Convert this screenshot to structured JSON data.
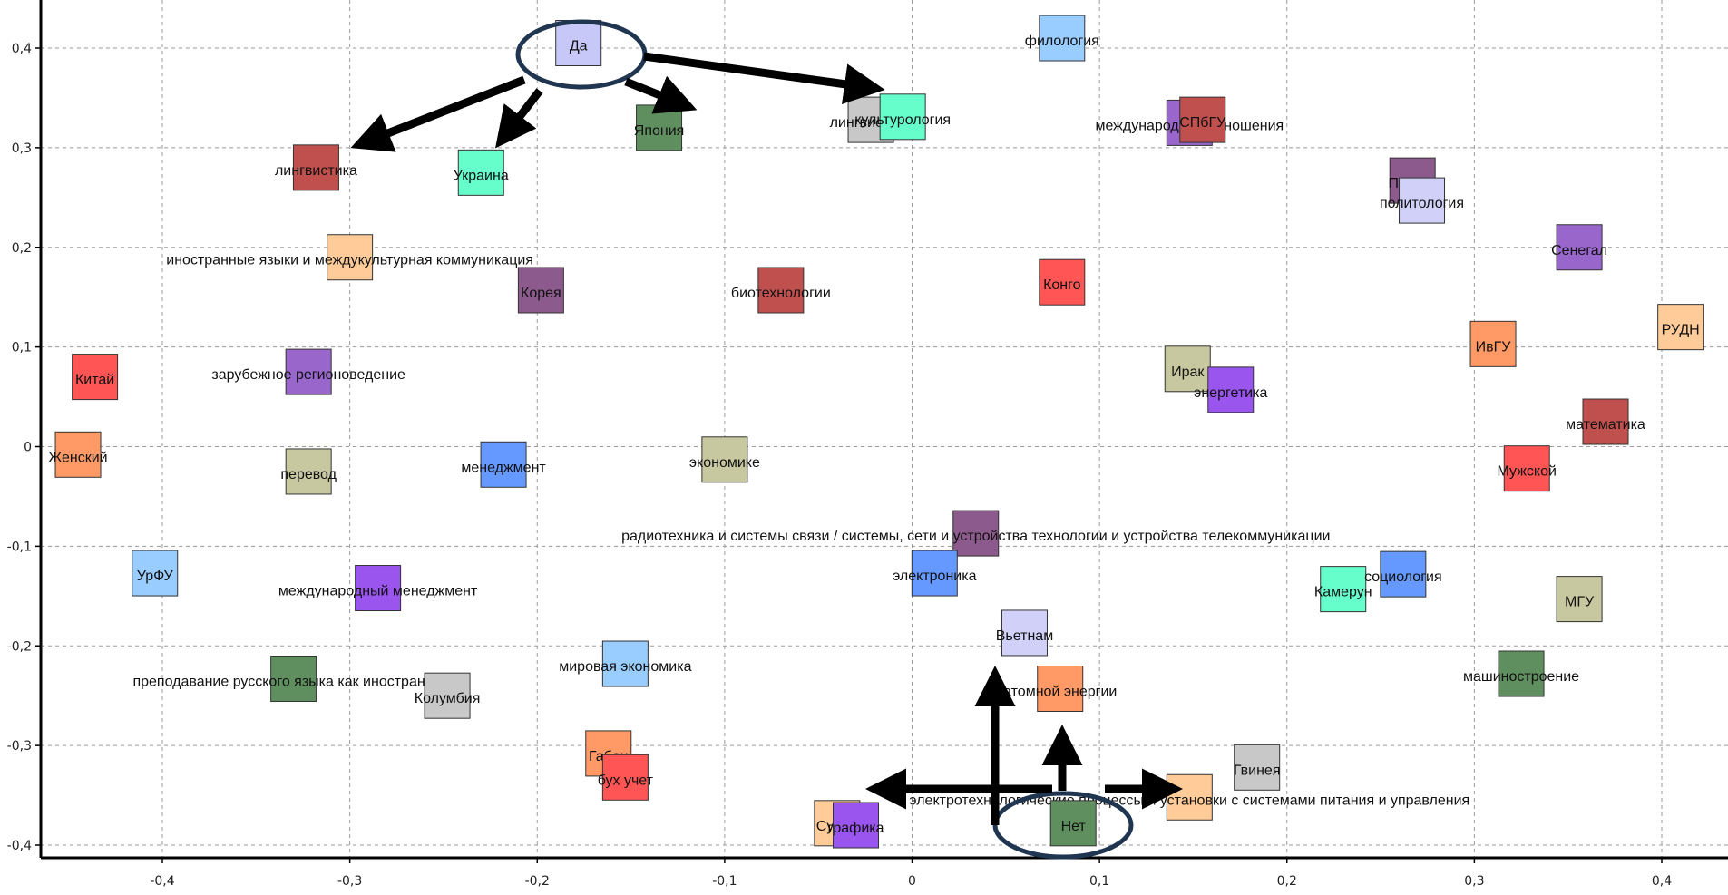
{
  "chart_data": {
    "type": "scatter",
    "xlim": [
      -0.46,
      0.43
    ],
    "ylim": [
      -0.415,
      0.435
    ],
    "grid": true,
    "x_ticks": [
      -0.4,
      -0.3,
      -0.2,
      -0.1,
      0,
      0.1,
      0.2,
      0.3,
      0.4
    ],
    "x_tick_labels": [
      "-0,4",
      "-0,3",
      "-0,2",
      "-0,1",
      "0",
      "0,1",
      "0,2",
      "0,3",
      "0,4"
    ],
    "y_ticks": [
      -0.4,
      -0.3,
      -0.2,
      -0.1,
      0,
      0.1,
      0.2,
      0.3,
      0.4
    ],
    "y_tick_labels": [
      "-0,4",
      "-0,3",
      "-0,2",
      "-0,1",
      "0",
      "0,1",
      "0,2",
      "0,3",
      "0,4"
    ],
    "points": [
      {
        "label": "Да",
        "x": -0.178,
        "y": 0.405,
        "color": "#c8c8f8"
      },
      {
        "label": "филология",
        "x": 0.08,
        "y": 0.41,
        "color": "#99ccff"
      },
      {
        "label": "лингвистика",
        "x": -0.318,
        "y": 0.28,
        "color": "#c0504d"
      },
      {
        "label": "Украина",
        "x": -0.23,
        "y": 0.275,
        "color": "#66ffcc"
      },
      {
        "label": "Япония",
        "x": -0.135,
        "y": 0.32,
        "color": "#5f8f5f"
      },
      {
        "label": "лингвистика",
        "x": -0.022,
        "y": 0.328,
        "color": "#c8c8c8"
      },
      {
        "label": "культурология",
        "x": -0.005,
        "y": 0.331,
        "color": "#66ffcc"
      },
      {
        "label": "международные отношения",
        "x": 0.148,
        "y": 0.325,
        "color": "#9966cc"
      },
      {
        "label": "СПбГУ",
        "x": 0.155,
        "y": 0.328,
        "color": "#c0504d"
      },
      {
        "label": "ПГНИУ",
        "x": 0.267,
        "y": 0.267,
        "color": "#8c5a8c"
      },
      {
        "label": "политология",
        "x": 0.272,
        "y": 0.247,
        "color": "#d0d0f8"
      },
      {
        "label": "иностранные языки и междукультурная коммуникация",
        "x": -0.3,
        "y": 0.19,
        "color": "#ffcc99"
      },
      {
        "label": "Корея",
        "x": -0.198,
        "y": 0.157,
        "color": "#8c5a8c"
      },
      {
        "label": "биотехнологии",
        "x": -0.07,
        "y": 0.157,
        "color": "#c0504d"
      },
      {
        "label": "Конго",
        "x": 0.08,
        "y": 0.165,
        "color": "#ff5555"
      },
      {
        "label": "Сенегал",
        "x": 0.356,
        "y": 0.2,
        "color": "#9966cc"
      },
      {
        "label": "РУДН",
        "x": 0.41,
        "y": 0.12,
        "color": "#ffcc99"
      },
      {
        "label": "ИвГУ",
        "x": 0.31,
        "y": 0.103,
        "color": "#ff9966"
      },
      {
        "label": "Китай",
        "x": -0.436,
        "y": 0.07,
        "color": "#ff5555"
      },
      {
        "label": "зарубежное регионоведение",
        "x": -0.322,
        "y": 0.075,
        "color": "#9966cc"
      },
      {
        "label": "Ирак",
        "x": 0.147,
        "y": 0.078,
        "color": "#c8c8a0"
      },
      {
        "label": "энергетика",
        "x": 0.17,
        "y": 0.057,
        "color": "#9955ee"
      },
      {
        "label": "математика",
        "x": 0.37,
        "y": 0.025,
        "color": "#c0504d"
      },
      {
        "label": "Женский",
        "x": -0.445,
        "y": -0.008,
        "color": "#ff9966"
      },
      {
        "label": "перевод",
        "x": -0.322,
        "y": -0.025,
        "color": "#c8c8a0"
      },
      {
        "label": "менеджмент",
        "x": -0.218,
        "y": -0.018,
        "color": "#6699ff"
      },
      {
        "label": "экономике",
        "x": -0.1,
        "y": -0.013,
        "color": "#c8c8a0"
      },
      {
        "label": "Мужской",
        "x": 0.328,
        "y": -0.022,
        "color": "#ff5555"
      },
      {
        "label": "радиотехника и системы связи / системы, сети и устройства технологии и устройства телекоммуникации",
        "x": 0.034,
        "y": -0.087,
        "color": "#8c5a8c"
      },
      {
        "label": "УрФУ",
        "x": -0.404,
        "y": -0.127,
        "color": "#99ccff"
      },
      {
        "label": "электроника",
        "x": 0.012,
        "y": -0.127,
        "color": "#6699ff"
      },
      {
        "label": "Камерун",
        "x": 0.23,
        "y": -0.143,
        "color": "#66ffcc"
      },
      {
        "label": "социология",
        "x": 0.262,
        "y": -0.128,
        "color": "#6699ff"
      },
      {
        "label": "МГУ",
        "x": 0.356,
        "y": -0.153,
        "color": "#c8c8a0"
      },
      {
        "label": "международный менеджмент",
        "x": -0.285,
        "y": -0.142,
        "color": "#9955ee"
      },
      {
        "label": "Вьетнам",
        "x": 0.06,
        "y": -0.187,
        "color": "#d0d0f8"
      },
      {
        "label": "мировая экономика",
        "x": -0.153,
        "y": -0.218,
        "color": "#99ccff"
      },
      {
        "label": "преподавание русского языка как иностранного",
        "x": -0.33,
        "y": -0.233,
        "color": "#5f8f5f"
      },
      {
        "label": "Колумбия",
        "x": -0.248,
        "y": -0.25,
        "color": "#c8c8c8"
      },
      {
        "label": "атомной энергии",
        "x": 0.079,
        "y": -0.243,
        "color": "#ff9966"
      },
      {
        "label": "машиностроение",
        "x": 0.325,
        "y": -0.228,
        "color": "#5f8f5f"
      },
      {
        "label": "Гвинея",
        "x": 0.184,
        "y": -0.322,
        "color": "#c8c8c8"
      },
      {
        "label": "Габон",
        "x": -0.162,
        "y": -0.308,
        "color": "#ff9966"
      },
      {
        "label": "бух учет",
        "x": -0.153,
        "y": -0.332,
        "color": "#ff5555"
      },
      {
        "label": "электротехнологические процессы и установки с системами питания и управления",
        "x": 0.148,
        "y": -0.352,
        "color": "#ffcc99"
      },
      {
        "label": "Судан",
        "x": -0.04,
        "y": -0.378,
        "color": "#ffcc99"
      },
      {
        "label": "графика",
        "x": -0.03,
        "y": -0.38,
        "color": "#9955ee"
      },
      {
        "label": "Нет",
        "x": 0.086,
        "y": -0.378,
        "color": "#5f8f5f"
      }
    ]
  }
}
